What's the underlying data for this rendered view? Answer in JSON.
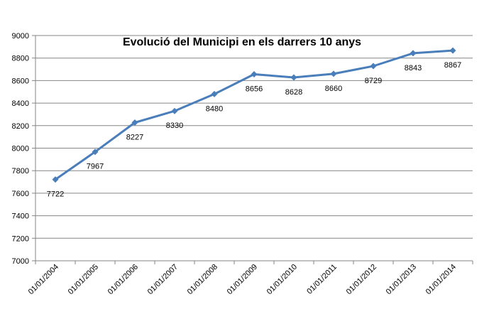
{
  "chart_data": {
    "type": "line",
    "title": "Evolució del Municipi en els darrers 10 anys",
    "xlabel": "",
    "ylabel": "",
    "categories": [
      "01/01/2004",
      "01/01/2005",
      "01/01/2006",
      "01/01/2007",
      "01/01/2008",
      "01/01/2009",
      "01/01/2010",
      "01/01/2011",
      "01/01/2012",
      "01/01/2013",
      "01/01/2014"
    ],
    "series": [
      {
        "values": [
          7722,
          7967,
          8227,
          8330,
          8480,
          8656,
          8628,
          8660,
          8729,
          8843,
          8867
        ]
      }
    ],
    "ylim": [
      7000,
      9000
    ],
    "yticks": [
      7000,
      7200,
      7400,
      7600,
      7800,
      8000,
      8200,
      8400,
      8600,
      8800,
      9000
    ],
    "grid": true,
    "legend": "none",
    "colors": {
      "line": "#4a7ebb",
      "grid": "#868686",
      "axis": "#868686"
    }
  }
}
